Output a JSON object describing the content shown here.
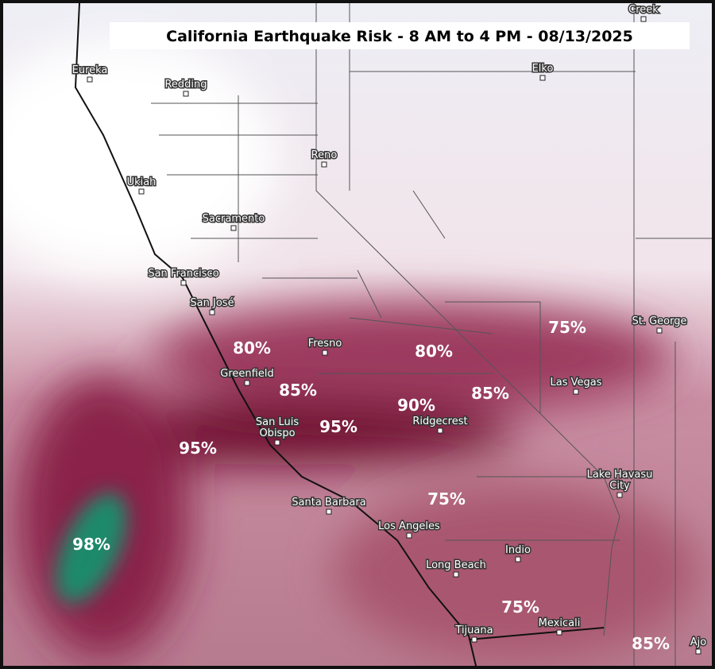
{
  "title": "California Earthquake Risk - 8 AM to 4 PM - 08/13/2025",
  "cities": [
    {
      "lines": [
        "Creek"
      ]
    },
    {
      "lines": [
        "Eureka"
      ]
    },
    {
      "lines": [
        "Redding"
      ]
    },
    {
      "lines": [
        "Elko"
      ]
    },
    {
      "lines": [
        "Reno"
      ]
    },
    {
      "lines": [
        "Ukiah"
      ]
    },
    {
      "lines": [
        "Sacramento"
      ]
    },
    {
      "lines": [
        "San Francisco"
      ]
    },
    {
      "lines": [
        "San José"
      ]
    },
    {
      "lines": [
        "St. George"
      ]
    },
    {
      "lines": [
        "Fresno"
      ]
    },
    {
      "lines": [
        "Greenfield"
      ]
    },
    {
      "lines": [
        "Las Vegas"
      ]
    },
    {
      "lines": [
        "Ridgecrest"
      ]
    },
    {
      "lines": [
        "San Luis",
        "Obispo"
      ]
    },
    {
      "lines": [
        "Santa Barbara"
      ]
    },
    {
      "lines": [
        "Lake Havasu",
        "City"
      ]
    },
    {
      "lines": [
        "Los Angeles"
      ]
    },
    {
      "lines": [
        "Indio"
      ]
    },
    {
      "lines": [
        "Long Beach"
      ]
    },
    {
      "lines": [
        "Tijuana"
      ]
    },
    {
      "lines": [
        "Mexicali"
      ]
    },
    {
      "lines": [
        "Ajo"
      ]
    }
  ],
  "risk_labels": [
    "80%",
    "80%",
    "75%",
    "85%",
    "85%",
    "90%",
    "95%",
    "95%",
    "75%",
    "98%",
    "75%",
    "85%"
  ]
}
